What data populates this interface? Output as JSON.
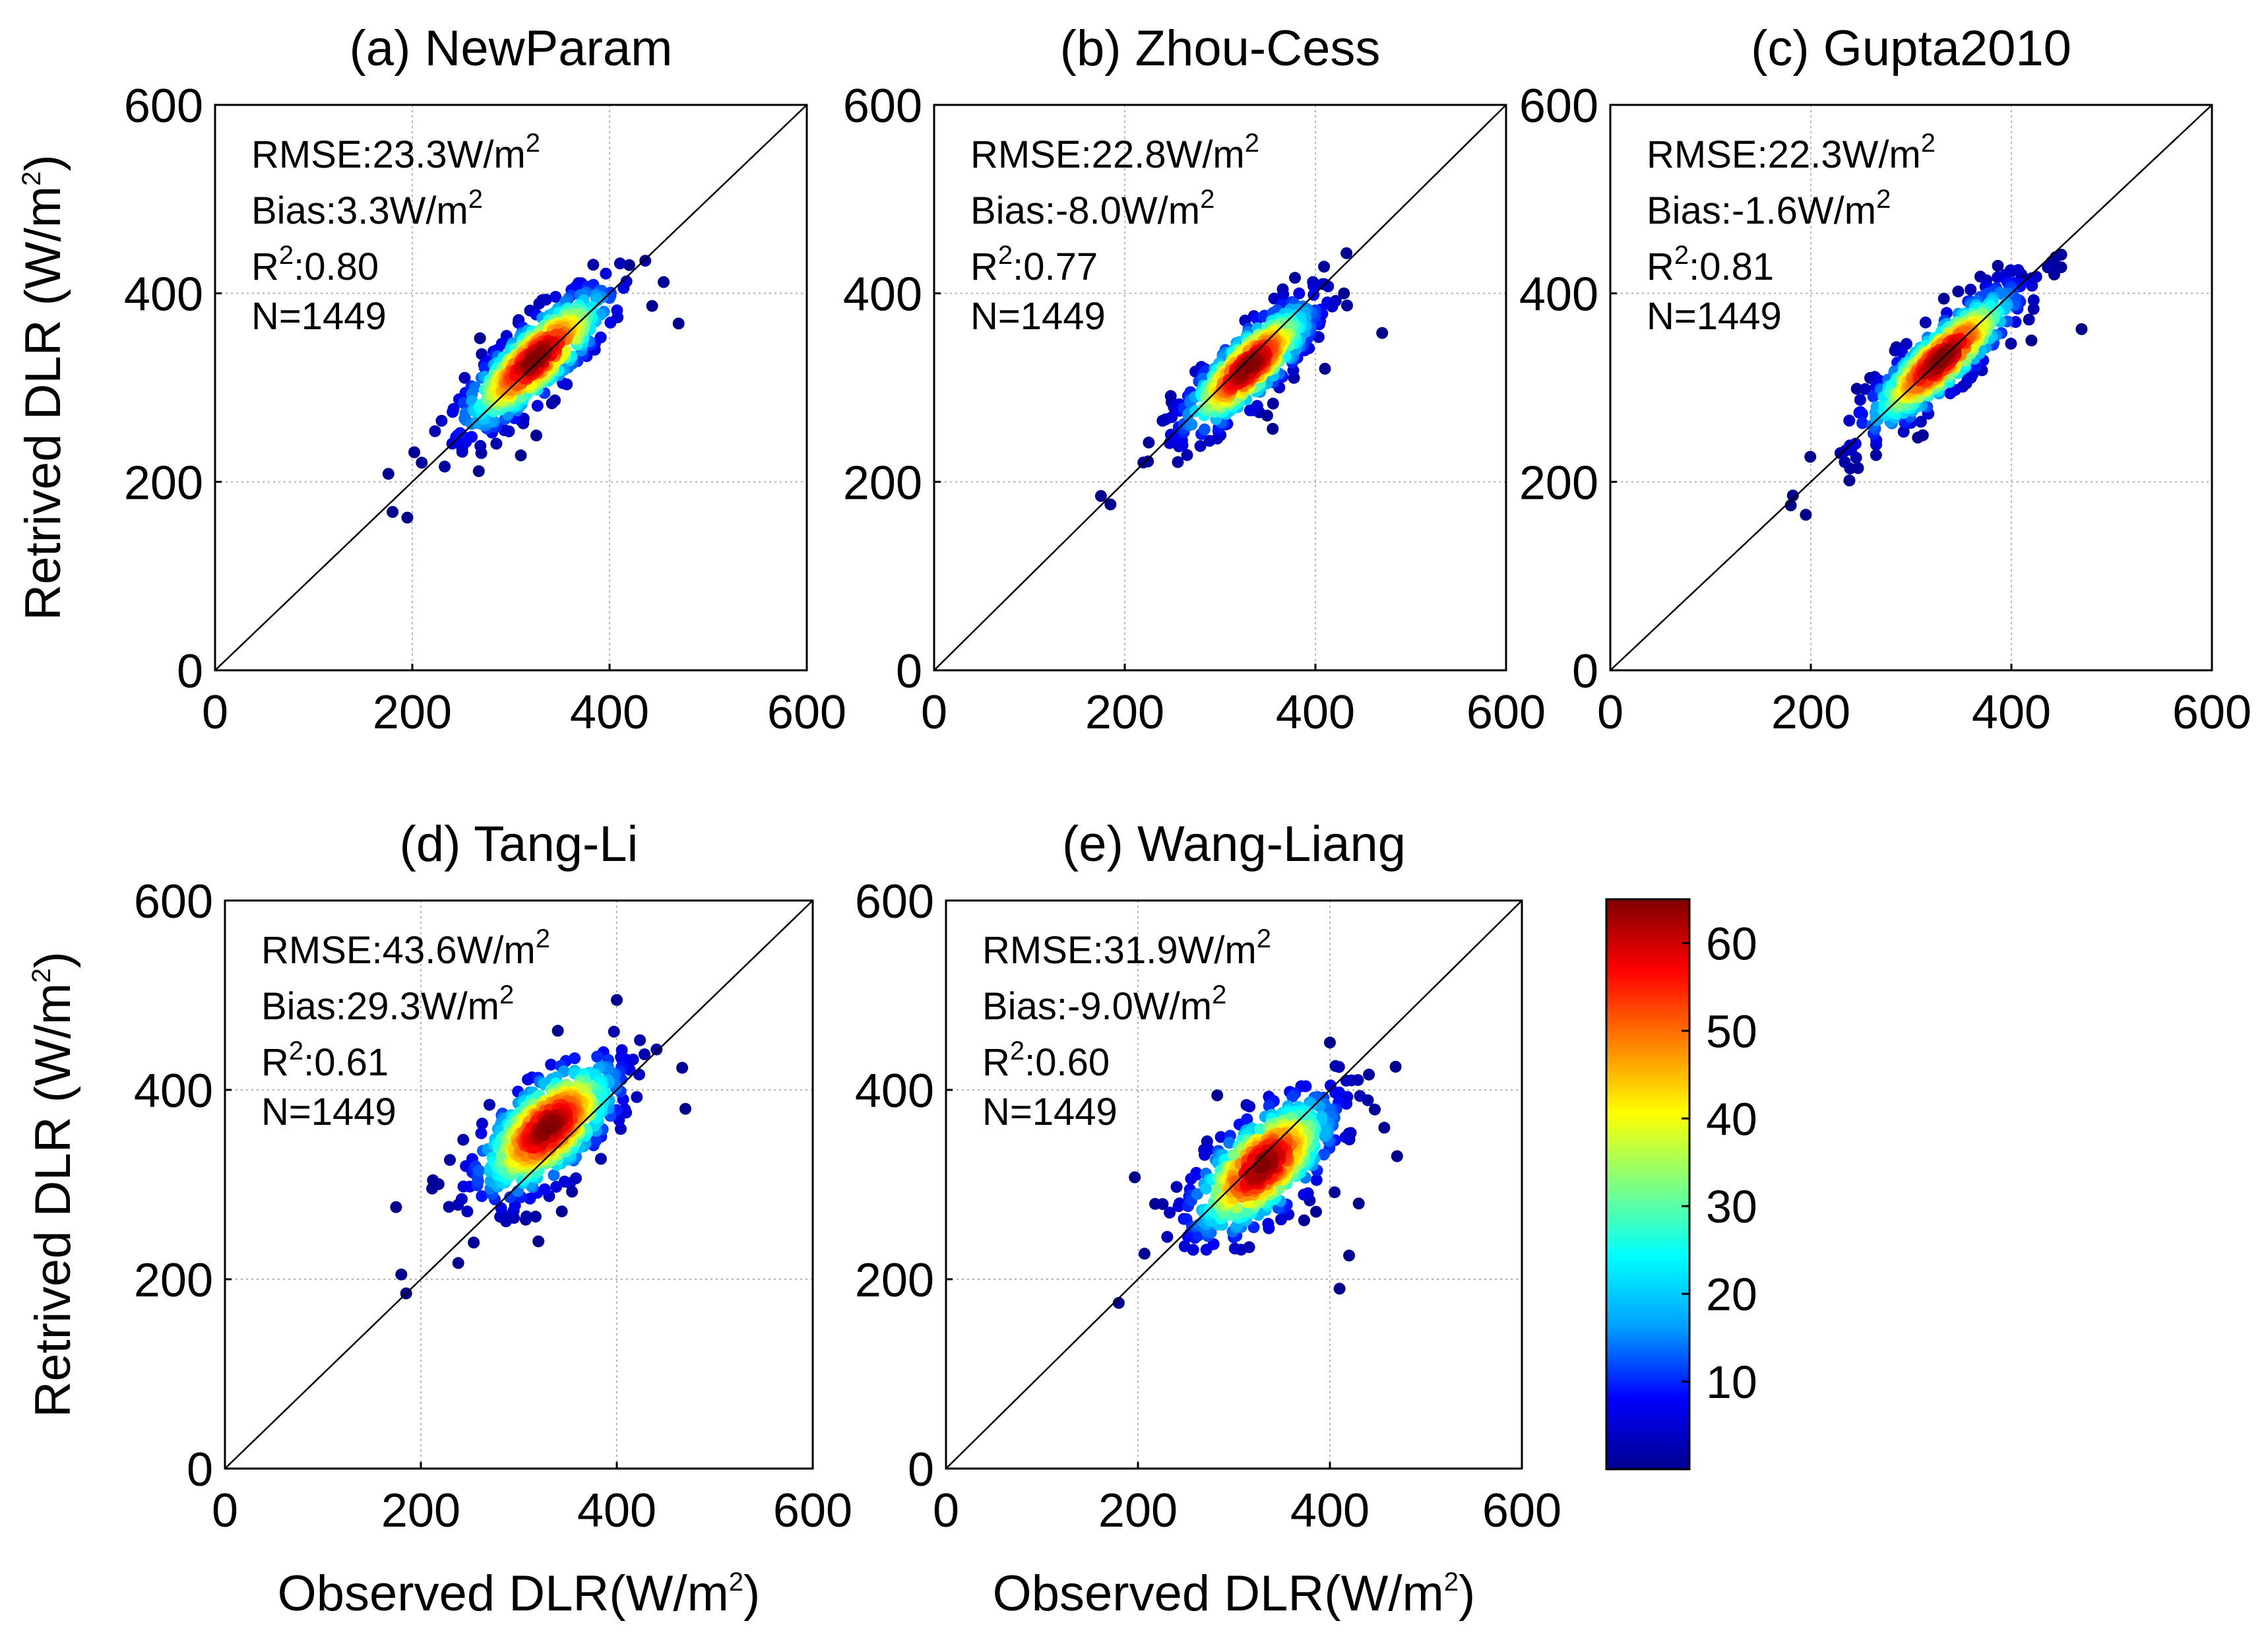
{
  "figure": {
    "y_axis_label": "Retrived DLR (W/m",
    "x_axis_label": "Observed DLR(W/m",
    "unit_superscript": "2"
  },
  "colorbar": {
    "ticks": [
      "10",
      "20",
      "30",
      "40",
      "50",
      "60"
    ],
    "tick_values": [
      10,
      20,
      30,
      40,
      50,
      60
    ],
    "min": 0,
    "max": 65,
    "colormap": [
      "#00008f",
      "#0000ff",
      "#00a0ff",
      "#00ffff",
      "#80ff80",
      "#ffff00",
      "#ff8000",
      "#ff0000",
      "#800000"
    ]
  },
  "chart_data": [
    {
      "type": "scatter",
      "title": "(a) NewParam",
      "xlabel": "",
      "ylabel": "Retrived DLR (W/m2)",
      "xlim": [
        0,
        600
      ],
      "ylim": [
        0,
        600
      ],
      "xticks": [
        "0",
        "200",
        "400",
        "600"
      ],
      "yticks": [
        "0",
        "200",
        "400",
        "600"
      ],
      "grid": true,
      "stats": {
        "rmse": "RMSE:23.3W/m",
        "bias": "Bias:3.3W/m",
        "r2_label": "R",
        "r2_value": ":0.80",
        "n": "N=1449"
      },
      "cloud": {
        "center": [
          325,
          330
        ],
        "spread_along": 55,
        "spread_across": 17,
        "offset": 5,
        "outliers": [
          [
            470,
            368
          ],
          [
            180,
            168
          ],
          [
            195,
            162
          ],
          [
            310,
            228
          ],
          [
            420,
            430
          ]
        ]
      }
    },
    {
      "type": "scatter",
      "title": "(b) Zhou-Cess",
      "xlabel": "",
      "ylabel": "",
      "xlim": [
        0,
        600
      ],
      "ylim": [
        0,
        600
      ],
      "xticks": [
        "0",
        "200",
        "400",
        "600"
      ],
      "yticks": [
        "0",
        "200",
        "400",
        "600"
      ],
      "grid": true,
      "stats": {
        "rmse": "RMSE:22.8W/m",
        "bias": "Bias:-8.0W/m",
        "r2_label": "R",
        "r2_value": ":0.77",
        "n": "N=1449"
      },
      "cloud": {
        "center": [
          330,
          322
        ],
        "spread_along": 50,
        "spread_across": 16,
        "offset": -8,
        "outliers": [
          [
            470,
            358
          ],
          [
            175,
            185
          ],
          [
            185,
            176
          ],
          [
            430,
            400
          ],
          [
            410,
            320
          ]
        ]
      }
    },
    {
      "type": "scatter",
      "title": "(c) Gupta2010",
      "xlabel": "",
      "ylabel": "",
      "xlim": [
        0,
        600
      ],
      "ylim": [
        0,
        600
      ],
      "xticks": [
        "0",
        "200",
        "400",
        "600"
      ],
      "yticks": [
        "0",
        "200",
        "400",
        "600"
      ],
      "grid": true,
      "stats": {
        "rmse": "RMSE:22.3W/m",
        "bias": "Bias:-1.6W/m",
        "r2_label": "R",
        "r2_value": ":0.81",
        "n": "N=1449"
      },
      "cloud": {
        "center": [
          330,
          330
        ],
        "spread_along": 55,
        "spread_across": 15,
        "offset": -2,
        "outliers": [
          [
            470,
            362
          ],
          [
            195,
            165
          ],
          [
            180,
            175
          ],
          [
            420,
            350
          ],
          [
            410,
            420
          ]
        ]
      }
    },
    {
      "type": "scatter",
      "title": "(d) Tang-Li",
      "xlabel": "Observed DLR(W/m2)",
      "ylabel": "Retrived DLR (W/m2)",
      "xlim": [
        0,
        600
      ],
      "ylim": [
        0,
        600
      ],
      "xticks": [
        "0",
        "200",
        "400",
        "600"
      ],
      "yticks": [
        "0",
        "200",
        "400",
        "600"
      ],
      "grid": true,
      "stats": {
        "rmse": "RMSE:43.6W/m",
        "bias": "Bias:29.3W/m",
        "r2_label": "R",
        "r2_value": ":0.61",
        "n": "N=1449"
      },
      "cloud": {
        "center": [
          330,
          360
        ],
        "spread_along": 50,
        "spread_across": 24,
        "offset": 28,
        "outliers": [
          [
            470,
            380
          ],
          [
            180,
            205
          ],
          [
            185,
            185
          ],
          [
            400,
            495
          ],
          [
            320,
            240
          ]
        ]
      }
    },
    {
      "type": "scatter",
      "title": "(e) Wang-Liang",
      "xlabel": "Observed DLR(W/m2)",
      "ylabel": "",
      "xlim": [
        0,
        600
      ],
      "ylim": [
        0,
        600
      ],
      "xticks": [
        "0",
        "200",
        "400",
        "600"
      ],
      "yticks": [
        "0",
        "200",
        "400",
        "600"
      ],
      "grid": true,
      "stats": {
        "rmse": "RMSE:31.9W/m",
        "bias": "Bias:-9.0W/m",
        "r2_label": "R",
        "r2_value": ":0.60",
        "n": "N=1449"
      },
      "cloud": {
        "center": [
          330,
          320
        ],
        "spread_along": 52,
        "spread_across": 24,
        "offset": -10,
        "outliers": [
          [
            470,
            330
          ],
          [
            410,
            190
          ],
          [
            420,
            225
          ],
          [
            180,
            175
          ],
          [
            430,
            280
          ],
          [
            400,
            450
          ]
        ]
      }
    }
  ]
}
